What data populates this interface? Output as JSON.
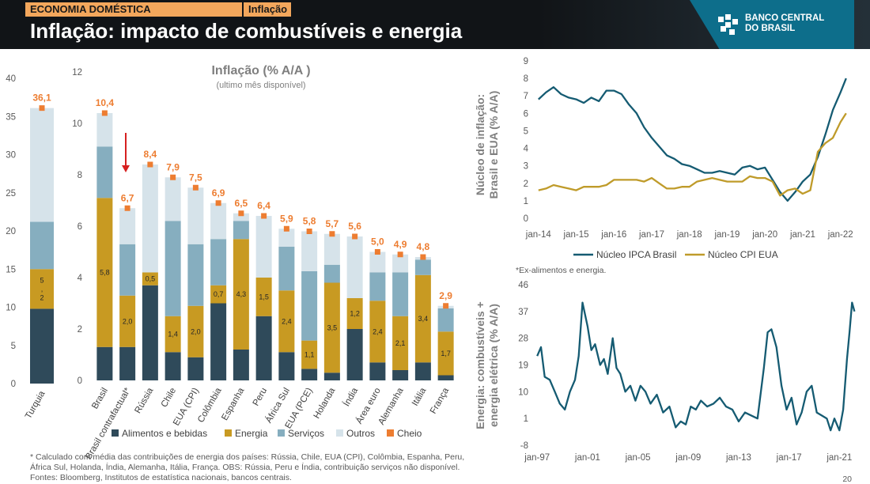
{
  "header": {
    "section": "ECONOMIA DOMÉSTICA",
    "topic": "Inflação",
    "title": "Inflação: impacto de combustíveis e energia",
    "logo_line1": "BANCO CENTRAL",
    "logo_line2": "DO BRASIL"
  },
  "colors": {
    "alimentos": "#2f4a5a",
    "energia": "#c89a22",
    "servicos": "#86aebf",
    "outros": "#d6e3ea",
    "cheio": "#ed7d31",
    "teal": "#155b72",
    "gold": "#bf9b2a"
  },
  "chart_data": [
    {
      "type": "bar",
      "id": "turquia",
      "categories": [
        "Turquia"
      ],
      "series": [
        {
          "name": "Alimentos e bebidas",
          "values": [
            9.8
          ]
        },
        {
          "name": "Energia",
          "values": [
            5.2
          ]
        },
        {
          "name": "Serviços",
          "values": [
            6.2
          ]
        },
        {
          "name": "Outros",
          "values": [
            14.9
          ]
        }
      ],
      "segment_labels": [
        [
          ""
        ],
        [
          "5\n,\n2"
        ],
        [
          ""
        ],
        [
          ""
        ]
      ],
      "cheio": [
        36.1
      ],
      "cheio_labels": [
        "36,1"
      ],
      "ylim": [
        0,
        40
      ],
      "yticks": [
        0,
        5,
        10,
        15,
        20,
        25,
        30,
        35,
        40
      ]
    },
    {
      "type": "bar",
      "id": "paises",
      "title": "Inflação (% A/A )",
      "subtitle": "(ultimo mês disponível)",
      "categories": [
        "Brasil",
        "Brasil contrafactual*",
        "Rússia",
        "Chile",
        "EUA (CPI)",
        "Colômbia",
        "Espanha",
        "Peru",
        "África Sul",
        "EUA (PCE)",
        "Holanda",
        "Índia",
        "Área euro",
        "Alemanha",
        "Itália",
        "França"
      ],
      "series": [
        {
          "name": "Alimentos e bebidas",
          "values": [
            1.3,
            1.3,
            3.7,
            1.1,
            0.9,
            3.0,
            1.2,
            2.5,
            1.1,
            0.45,
            0.3,
            2.0,
            0.7,
            0.4,
            0.7,
            0.2
          ]
        },
        {
          "name": "Energia",
          "values": [
            5.8,
            2.0,
            0.5,
            1.4,
            2.0,
            0.7,
            4.3,
            1.5,
            2.4,
            1.1,
            3.5,
            1.2,
            2.4,
            2.1,
            3.4,
            1.7
          ]
        },
        {
          "name": "Serviços",
          "values": [
            2.0,
            2.0,
            0.0,
            3.7,
            2.4,
            1.8,
            0.7,
            0.0,
            1.7,
            2.7,
            0.7,
            0.0,
            1.1,
            1.7,
            0.6,
            0.9
          ]
        },
        {
          "name": "Outros",
          "values": [
            1.3,
            1.4,
            4.2,
            1.7,
            2.2,
            1.4,
            0.3,
            2.4,
            0.7,
            1.55,
            1.2,
            2.4,
            0.8,
            0.7,
            0.1,
            0.1
          ]
        }
      ],
      "segment_labels": [
        [
          "",
          "",
          "",
          "",
          "",
          "",
          "",
          "",
          "",
          "",
          "",
          "",
          "",
          "",
          "",
          ""
        ],
        [
          "5,8",
          "2,0",
          "0,5",
          "1,4",
          "2,0",
          "0,7",
          "4,3",
          "1,5",
          "2,4",
          "1,1",
          "3,5",
          "1,2",
          "2,4",
          "2,1",
          "3,4",
          "1,7"
        ],
        [
          "",
          "",
          "",
          "",
          "",
          "",
          "",
          "",
          "",
          "",
          "",
          "",
          "",
          "",
          "",
          ""
        ],
        [
          "",
          "",
          "",
          "",
          "",
          "",
          "",
          "",
          "",
          "",
          "",
          "",
          "",
          "",
          "",
          ""
        ]
      ],
      "cheio": [
        10.4,
        6.7,
        8.4,
        7.9,
        7.5,
        6.9,
        6.5,
        6.4,
        5.9,
        5.8,
        5.7,
        5.6,
        5.0,
        4.9,
        4.8,
        2.9
      ],
      "cheio_labels": [
        "10,4",
        "6,7",
        "8,4",
        "7,9",
        "7,5",
        "6,9",
        "6,5",
        "6,4",
        "5,9",
        "5,8",
        "5,7",
        "5,6",
        "5,0",
        "4,9",
        "4,8",
        "2,9"
      ],
      "annotation": "red down arrow from Brasil toward Brasil contrafactual*",
      "ylim": [
        0,
        12
      ],
      "yticks": [
        0,
        2,
        4,
        6,
        8,
        10,
        12
      ]
    },
    {
      "type": "line",
      "id": "nucleo",
      "ylabel": "Núcleo de inflação: Brasil e EUA (% A/A)",
      "xlim": [
        2013.9,
        2022.3
      ],
      "ylim": [
        0,
        9
      ],
      "yticks": [
        0,
        1,
        2,
        3,
        4,
        5,
        6,
        7,
        8,
        9
      ],
      "xticks": [
        2014,
        2015,
        2016,
        2017,
        2018,
        2019,
        2020,
        2021,
        2022
      ],
      "xtick_labels": [
        "jan-14",
        "jan-15",
        "jan-16",
        "jan-17",
        "jan-18",
        "jan-19",
        "jan-20",
        "jan-21",
        "jan-22"
      ],
      "series": [
        {
          "name": "Núcleo IPCA Brasil",
          "x": [
            2014.0,
            2014.2,
            2014.4,
            2014.6,
            2014.8,
            2015.0,
            2015.2,
            2015.4,
            2015.6,
            2015.8,
            2016.0,
            2016.2,
            2016.4,
            2016.6,
            2016.8,
            2017.0,
            2017.2,
            2017.4,
            2017.6,
            2017.8,
            2018.0,
            2018.2,
            2018.4,
            2018.6,
            2018.8,
            2019.0,
            2019.2,
            2019.4,
            2019.6,
            2019.8,
            2020.0,
            2020.2,
            2020.4,
            2020.6,
            2020.8,
            2021.0,
            2021.2,
            2021.4,
            2021.6,
            2021.8,
            2022.0,
            2022.15
          ],
          "y": [
            6.8,
            7.2,
            7.5,
            7.1,
            6.9,
            6.8,
            6.6,
            6.9,
            6.7,
            7.3,
            7.3,
            7.1,
            6.5,
            6.0,
            5.2,
            4.6,
            4.1,
            3.6,
            3.4,
            3.1,
            3.0,
            2.8,
            2.6,
            2.6,
            2.7,
            2.6,
            2.5,
            2.9,
            3.0,
            2.8,
            2.9,
            2.2,
            1.5,
            1.0,
            1.5,
            2.1,
            2.5,
            3.5,
            4.8,
            6.2,
            7.2,
            8.0
          ]
        },
        {
          "name": "Núcleo CPI EUA",
          "x": [
            2014.0,
            2014.2,
            2014.4,
            2014.6,
            2014.8,
            2015.0,
            2015.2,
            2015.4,
            2015.6,
            2015.8,
            2016.0,
            2016.2,
            2016.4,
            2016.6,
            2016.8,
            2017.0,
            2017.2,
            2017.4,
            2017.6,
            2017.8,
            2018.0,
            2018.2,
            2018.4,
            2018.6,
            2018.8,
            2019.0,
            2019.2,
            2019.4,
            2019.6,
            2019.8,
            2020.0,
            2020.2,
            2020.4,
            2020.6,
            2020.8,
            2021.0,
            2021.2,
            2021.4,
            2021.6,
            2021.8,
            2022.0,
            2022.15
          ],
          "y": [
            1.6,
            1.7,
            1.9,
            1.8,
            1.7,
            1.6,
            1.8,
            1.8,
            1.8,
            1.9,
            2.2,
            2.2,
            2.2,
            2.2,
            2.1,
            2.3,
            2.0,
            1.7,
            1.7,
            1.8,
            1.8,
            2.1,
            2.2,
            2.3,
            2.2,
            2.1,
            2.1,
            2.1,
            2.4,
            2.3,
            2.3,
            2.1,
            1.3,
            1.6,
            1.7,
            1.4,
            1.6,
            3.8,
            4.3,
            4.6,
            5.5,
            6.0
          ]
        }
      ]
    },
    {
      "type": "line",
      "id": "energia",
      "ylabel": "Energia: combustíveis + energia elétrica (% A/A)",
      "xlim": [
        1996.8,
        2022.8
      ],
      "ylim": [
        -8,
        46
      ],
      "yticks": [
        -8,
        1,
        10,
        19,
        28,
        37,
        46
      ],
      "xticks": [
        1997,
        2001,
        2005,
        2009,
        2013,
        2017,
        2021
      ],
      "xtick_labels": [
        "jan-97",
        "jan-01",
        "jan-05",
        "jan-09",
        "jan-13",
        "jan-17",
        "jan-21"
      ],
      "series": [
        {
          "name": "Energia",
          "x": [
            1997.0,
            1997.3,
            1997.6,
            1998.0,
            1998.4,
            1998.8,
            1999.2,
            1999.6,
            2000.0,
            2000.3,
            2000.6,
            2001.0,
            2001.3,
            2001.6,
            2002.0,
            2002.3,
            2002.6,
            2003.0,
            2003.3,
            2003.6,
            2004.0,
            2004.4,
            2004.8,
            2005.2,
            2005.6,
            2006.0,
            2006.5,
            2007.0,
            2007.5,
            2008.0,
            2008.4,
            2008.8,
            2009.2,
            2009.6,
            2010.0,
            2010.5,
            2011.0,
            2011.5,
            2012.0,
            2012.5,
            2013.0,
            2013.5,
            2014.0,
            2014.5,
            2015.0,
            2015.3,
            2015.6,
            2016.0,
            2016.4,
            2016.8,
            2017.2,
            2017.6,
            2018.0,
            2018.4,
            2018.8,
            2019.2,
            2019.6,
            2020.0,
            2020.3,
            2020.6,
            2021.0,
            2021.3,
            2021.6,
            2021.8,
            2022.0,
            2022.2
          ],
          "y": [
            22,
            25,
            15,
            14,
            10,
            6,
            4,
            10,
            14,
            22,
            40,
            32,
            24,
            26,
            19,
            21,
            16,
            28,
            18,
            16,
            10,
            12,
            7,
            12,
            10,
            6,
            9,
            3,
            5,
            -2,
            0,
            -1,
            5,
            4,
            7,
            5,
            6,
            8,
            5,
            4,
            0,
            3,
            2,
            1,
            18,
            30,
            31,
            25,
            12,
            4,
            8,
            -1,
            3,
            10,
            12,
            3,
            2,
            1,
            -3,
            1,
            -3,
            4,
            21,
            30,
            40,
            37
          ]
        }
      ]
    }
  ],
  "legend": [
    {
      "label": "Alimentos e bebidas"
    },
    {
      "label": "Energia"
    },
    {
      "label": "Serviços"
    },
    {
      "label": "Outros"
    },
    {
      "label": "Cheio"
    }
  ],
  "legend2": [
    {
      "label": "Núcleo IPCA Brasil"
    },
    {
      "label": "Núcleo CPI EUA"
    }
  ],
  "note_core": "*Ex-alimentos e energia.",
  "footnote1": "* Calculado com média das contribuições de energia dos países: Rússia, Chile, EUA (CPI), Colômbia, Espanha, Peru,",
  "footnote2": "África Sul, Holanda, Índia, Alemanha, Itália, França. OBS: Rússia, Peru e Índia, contribuição serviços não disponível.",
  "footnote3": "Fontes: Bloomberg, Institutos de estatística nacionais, bancos centrais.",
  "page_number": "20"
}
